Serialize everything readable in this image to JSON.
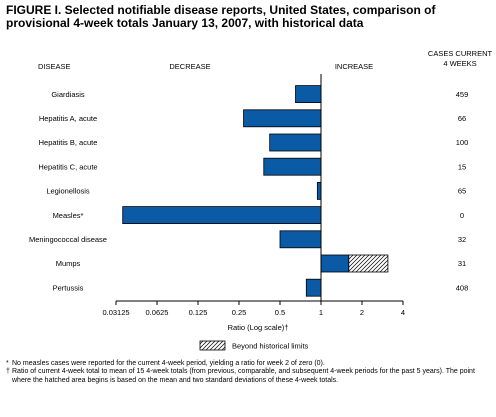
{
  "title": "FIGURE I. Selected notifiable disease reports, United States, comparison of provisional 4-week totals January 13, 2007, with historical data",
  "headers": {
    "disease": "DISEASE",
    "decrease": "DECREASE",
    "increase": "INCREASE",
    "cases_line1": "CASES CURRENT",
    "cases_line2": "4 WEEKS"
  },
  "legend_label": "Beyond historical limits",
  "colors": {
    "bar": "#0a5aa5",
    "bar_stroke": "#000000"
  },
  "chart_data": {
    "type": "bar",
    "orientation": "horizontal",
    "x_scale": "log2",
    "xlim": [
      0.03125,
      4
    ],
    "xticks": [
      "0.03125",
      "0.0625",
      "0.125",
      "0.25",
      "0.5",
      "1",
      "2",
      "4"
    ],
    "tick_values": [
      0.03125,
      0.0625,
      0.125,
      0.25,
      0.5,
      1,
      2,
      4
    ],
    "xlabel": "Ratio (Log scale)†",
    "reference_line": 1,
    "categories": [
      "Giardiasis",
      "Hepatitis A, acute",
      "Hepatitis B, acute",
      "Hepatitis C, acute",
      "Legionellosis",
      "Measles*",
      "Meningococcal disease",
      "Mumps",
      "Pertussis"
    ],
    "values": [
      0.65,
      0.27,
      0.42,
      0.38,
      0.94,
      0.035,
      0.5,
      3.1,
      0.78
    ],
    "historical_limit": [
      null,
      null,
      null,
      null,
      null,
      null,
      null,
      1.6,
      null
    ],
    "cases_current_4_weeks": [
      "459",
      "66",
      "100",
      "15",
      "65",
      "0",
      "32",
      "31",
      "408"
    ]
  },
  "footnotes": [
    {
      "symbol": "*",
      "text": "No measles cases were reported for the current 4-week period, yielding a ratio for week 2 of zero (0)."
    },
    {
      "symbol": "†",
      "text": "Ratio of current 4-week total to mean of 15 4-week totals (from previous, comparable, and subsequent 4-week periods for the past 5 years). The point where the hatched area begins is based on the mean and two standard deviations of these 4-week totals."
    }
  ]
}
